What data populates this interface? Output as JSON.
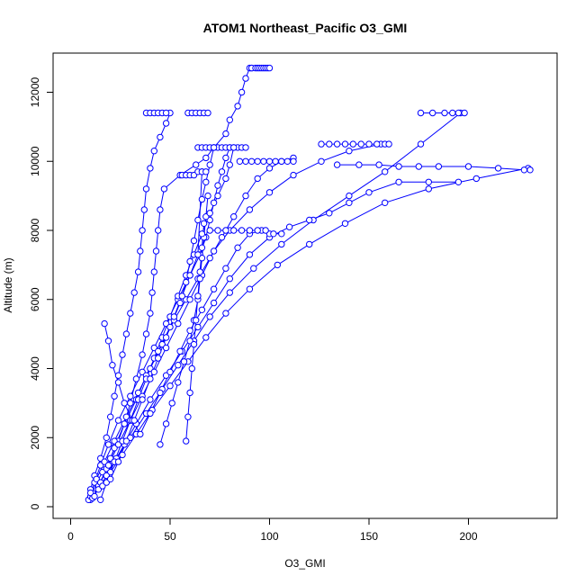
{
  "chart_data": {
    "type": "scatter",
    "title": "ATOM1 Northeast_Pacific O3_GMI",
    "xlabel": "O3_GMI",
    "ylabel": "Altitude (m)",
    "xlim": [
      0,
      240
    ],
    "ylim": [
      0,
      13000
    ],
    "xticks": [
      0,
      50,
      100,
      150,
      200
    ],
    "yticks": [
      0,
      2000,
      4000,
      6000,
      8000,
      10000,
      12000
    ],
    "xtick_labels": [
      "0",
      "50",
      "100",
      "150",
      "200"
    ],
    "ytick_labels": [
      "0",
      "2000",
      "4000",
      "6000",
      "8000",
      "10000",
      "12000"
    ],
    "grid": false,
    "color": "#0000ff",
    "marker": "open-circle",
    "series": [
      {
        "x": [
          10,
          11,
          13,
          16,
          20,
          24,
          27,
          30,
          33,
          36,
          38,
          40,
          41,
          42,
          43,
          44,
          45,
          47,
          55,
          63,
          68,
          72,
          78,
          80,
          84,
          86,
          88,
          90,
          91
        ],
        "y": [
          200,
          400,
          700,
          1000,
          1400,
          1900,
          2400,
          3000,
          3700,
          4400,
          5000,
          5600,
          6200,
          6800,
          7400,
          8000,
          8600,
          9200,
          9600,
          9900,
          10100,
          10400,
          10800,
          11200,
          11600,
          12000,
          12400,
          12700,
          12700
        ]
      },
      {
        "x": [
          91,
          93,
          94,
          95,
          96,
          97,
          98,
          99,
          100
        ],
        "y": [
          12700,
          12700,
          12700,
          12700,
          12700,
          12700,
          12700,
          12700,
          12700
        ]
      },
      {
        "x": [
          9,
          10,
          12,
          15,
          18,
          20,
          22,
          24,
          26,
          28,
          30,
          32,
          34,
          35,
          36,
          37,
          38,
          40,
          42,
          45,
          48,
          50
        ],
        "y": [
          200,
          500,
          900,
          1400,
          2000,
          2600,
          3200,
          3800,
          4400,
          5000,
          5600,
          6200,
          6800,
          7400,
          8000,
          8600,
          9200,
          9800,
          10300,
          10700,
          11100,
          11400
        ]
      },
      {
        "x": [
          38,
          40,
          42,
          44,
          46,
          48
        ],
        "y": [
          11400,
          11400,
          11400,
          11400,
          11400,
          11400
        ]
      },
      {
        "x": [
          10,
          12,
          15,
          19,
          24,
          30,
          36,
          42,
          48,
          54,
          60,
          65,
          68,
          70,
          72,
          74,
          76,
          78,
          80
        ],
        "y": [
          300,
          700,
          1200,
          1800,
          2500,
          3200,
          3900,
          4600,
          5300,
          6000,
          6700,
          7300,
          7800,
          8300,
          8800,
          9300,
          9700,
          10100,
          10400
        ]
      },
      {
        "x": [
          64,
          66,
          68,
          70,
          72,
          74,
          76,
          78,
          80,
          82,
          84,
          86,
          88
        ],
        "y": [
          10400,
          10400,
          10400,
          10400,
          10400,
          10400,
          10400,
          10400,
          10400,
          10400,
          10400,
          10400,
          10400
        ]
      },
      {
        "x": [
          11,
          14,
          18,
          22,
          27,
          33,
          38,
          44,
          50,
          55,
          58,
          60,
          62,
          64,
          66,
          68,
          70,
          72
        ],
        "y": [
          250,
          600,
          1100,
          1700,
          2400,
          3100,
          3800,
          4500,
          5200,
          5900,
          6500,
          7100,
          7700,
          8300,
          8900,
          9400,
          9900,
          10400
        ]
      },
      {
        "x": [
          59,
          61,
          63,
          65,
          67,
          69
        ],
        "y": [
          11400,
          11400,
          11400,
          11400,
          11400,
          11400
        ]
      },
      {
        "x": [
          10,
          13,
          17,
          22,
          28,
          34,
          40,
          46,
          52,
          58,
          64,
          70,
          76,
          82,
          88,
          94,
          100,
          106,
          112
        ],
        "y": [
          400,
          800,
          1300,
          1900,
          2600,
          3300,
          4000,
          4700,
          5400,
          6000,
          6600,
          7200,
          7800,
          8400,
          9000,
          9500,
          9800,
          10000,
          10100
        ]
      },
      {
        "x": [
          85,
          88,
          91,
          94,
          97,
          100,
          103,
          106,
          109,
          112
        ],
        "y": [
          10000,
          10000,
          10000,
          10000,
          10000,
          10000,
          10000,
          10000,
          10000,
          10000
        ]
      },
      {
        "x": [
          12,
          15,
          19,
          24,
          30,
          36,
          42,
          48,
          54,
          60,
          66,
          72,
          80,
          90,
          100,
          112,
          126,
          140,
          156
        ],
        "y": [
          300,
          700,
          1200,
          1800,
          2500,
          3200,
          3900,
          4600,
          5300,
          6000,
          6700,
          7400,
          8000,
          8600,
          9100,
          9600,
          10000,
          10300,
          10500
        ]
      },
      {
        "x": [
          126,
          130,
          134,
          138,
          142,
          146,
          150,
          154,
          158,
          160
        ],
        "y": [
          10500,
          10500,
          10500,
          10500,
          10500,
          10500,
          10500,
          10500,
          10500,
          10500
        ]
      },
      {
        "x": [
          14,
          18,
          23,
          30,
          38,
          46,
          54,
          62,
          70,
          80,
          92,
          106,
          122,
          140,
          158,
          176,
          196
        ],
        "y": [
          500,
          900,
          1400,
          2000,
          2700,
          3400,
          4100,
          4800,
          5500,
          6200,
          6900,
          7600,
          8300,
          9000,
          9700,
          10500,
          11400
        ]
      },
      {
        "x": [
          176,
          182,
          188,
          192,
          195,
          198
        ],
        "y": [
          11400,
          11400,
          11400,
          11400,
          11400,
          11400
        ]
      },
      {
        "x": [
          16,
          20,
          26,
          33,
          41,
          50,
          59,
          68,
          78,
          90,
          104,
          120,
          138,
          158,
          180,
          204,
          230
        ],
        "y": [
          600,
          1000,
          1500,
          2100,
          2800,
          3500,
          4200,
          4900,
          5600,
          6300,
          7000,
          7600,
          8200,
          8800,
          9200,
          9500,
          9800
        ]
      },
      {
        "x": [
          134,
          145,
          155,
          165,
          175,
          185,
          200,
          215,
          228,
          231
        ],
        "y": [
          9900,
          9900,
          9900,
          9850,
          9850,
          9850,
          9850,
          9800,
          9750,
          9750
        ]
      },
      {
        "x": [
          18,
          22,
          27,
          33,
          40,
          48,
          56,
          64,
          72,
          80,
          90,
          100,
          110,
          120,
          130,
          140,
          150,
          165,
          180,
          195
        ],
        "y": [
          900,
          1300,
          1800,
          2400,
          3100,
          3800,
          4500,
          5200,
          5900,
          6600,
          7300,
          7800,
          8100,
          8300,
          8500,
          8800,
          9100,
          9400,
          9400,
          9400
        ]
      },
      {
        "x": [
          45,
          48,
          51,
          54,
          57,
          60,
          62,
          64,
          65,
          66,
          67,
          68,
          69
        ],
        "y": [
          1800,
          2400,
          3000,
          3600,
          4200,
          4800,
          5400,
          6000,
          6600,
          7200,
          7800,
          8400,
          9000
        ]
      },
      {
        "x": [
          58,
          59,
          60,
          61,
          62,
          63,
          64,
          65,
          66,
          67
        ],
        "y": [
          1900,
          2600,
          3300,
          4000,
          4700,
          5400,
          6100,
          6800,
          7500,
          8200
        ]
      },
      {
        "x": [
          15,
          18,
          22,
          26,
          30,
          34,
          38,
          42,
          46,
          50,
          54,
          58,
          62,
          66,
          70,
          74,
          78,
          80,
          82
        ],
        "y": [
          200,
          700,
          1300,
          1900,
          2500,
          3100,
          3700,
          4300,
          4900,
          5500,
          6100,
          6700,
          7300,
          7900,
          8500,
          9000,
          9500,
          9900,
          10400
        ]
      },
      {
        "x": [
          17,
          19,
          21,
          24,
          27,
          31,
          35,
          40,
          45,
          50,
          55,
          60,
          66,
          72,
          78,
          84,
          90,
          96,
          100
        ],
        "y": [
          5300,
          4800,
          4100,
          3600,
          3000,
          2500,
          2100,
          2700,
          3300,
          3900,
          4500,
          5100,
          5700,
          6300,
          6900,
          7500,
          7900,
          8000,
          7900
        ]
      },
      {
        "x": [
          70,
          74,
          78,
          82,
          86,
          90,
          94,
          98,
          102,
          106
        ],
        "y": [
          8000,
          8000,
          8000,
          8000,
          8000,
          8000,
          8000,
          8000,
          7900,
          7900
        ]
      },
      {
        "x": [
          20,
          24,
          28,
          32,
          36,
          40,
          44,
          48,
          52,
          56,
          60,
          64,
          66
        ],
        "y": [
          800,
          1300,
          1900,
          2500,
          3100,
          3700,
          4300,
          4900,
          5500,
          6100,
          6700,
          7300,
          9700
        ]
      },
      {
        "x": [
          56,
          58,
          60,
          62,
          64,
          66,
          68
        ],
        "y": [
          9600,
          9600,
          9600,
          9600,
          9700,
          9700,
          9700
        ]
      }
    ]
  }
}
